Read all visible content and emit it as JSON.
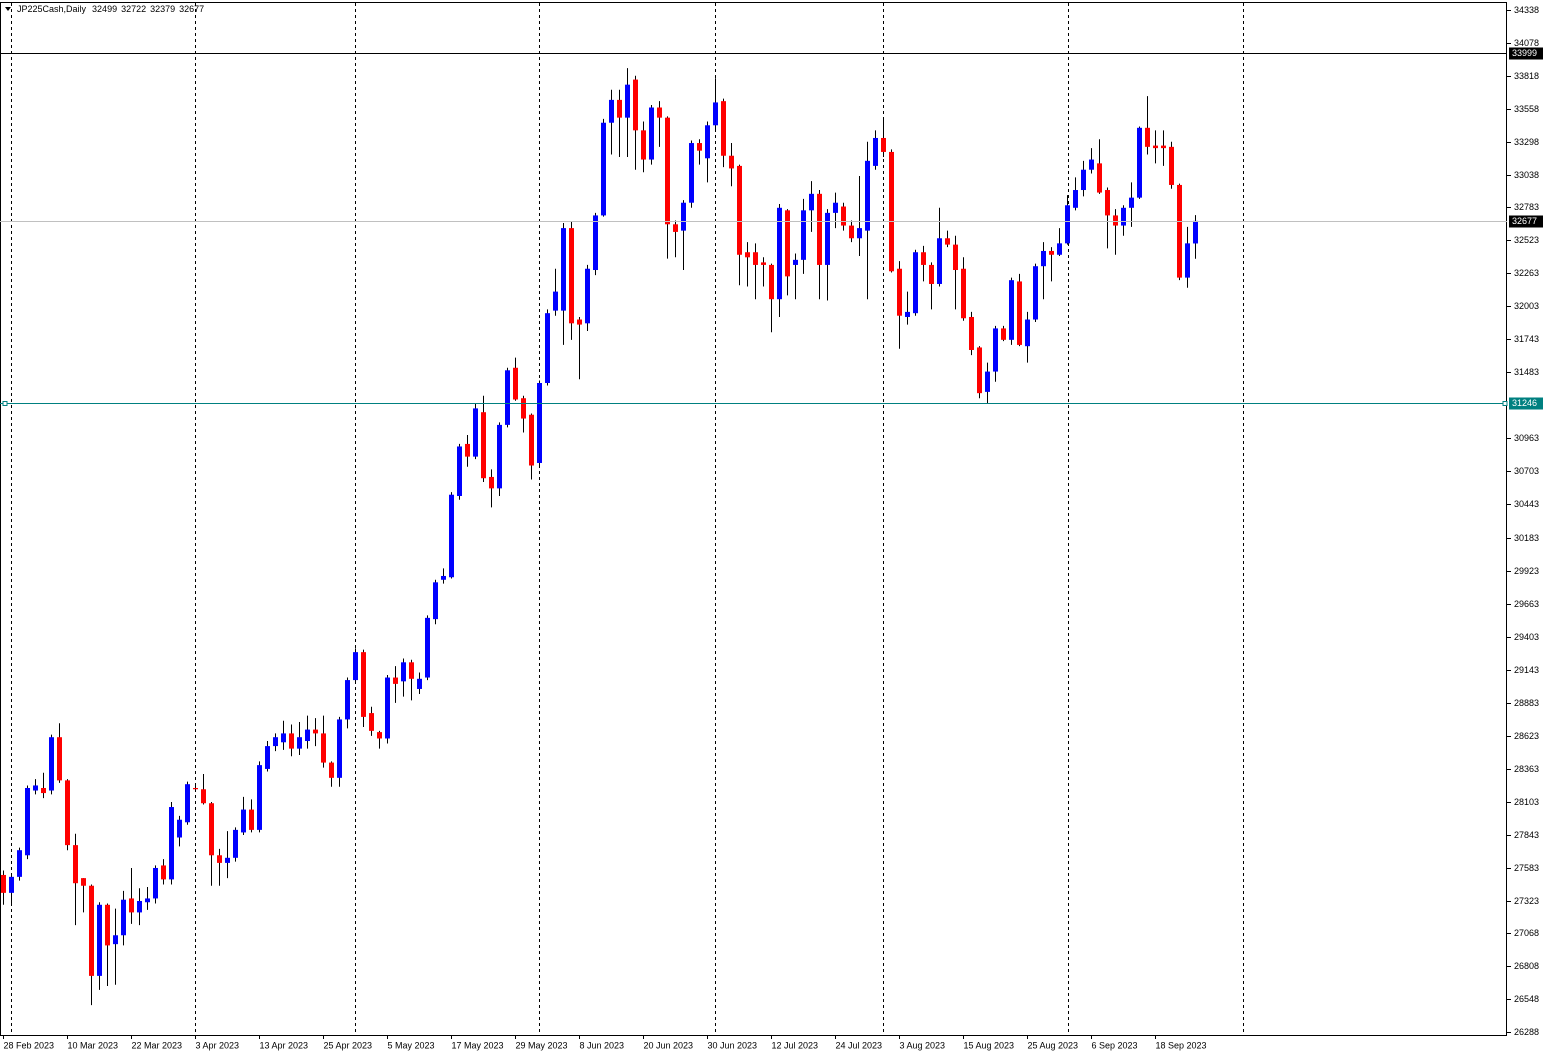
{
  "chart_data": {
    "type": "candlestick",
    "symbol": "JP225Cash,Daily",
    "up_color": "#0000ff",
    "down_color": "#ff0000",
    "bid_line_color": "#c0c0c0",
    "ylim": [
      26288,
      34338
    ],
    "yticks": [
      26288,
      26548,
      26808,
      27068,
      27323,
      27583,
      27843,
      28103,
      28363,
      28623,
      28883,
      29143,
      29403,
      29663,
      29923,
      30183,
      30443,
      30703,
      30963,
      31483,
      31743,
      32003,
      32263,
      32523,
      32783,
      33038,
      33298,
      33558,
      33818,
      34078,
      34338
    ],
    "hlines": [
      {
        "value": 33999,
        "color": "#000000"
      },
      {
        "value": 31246,
        "color": "#008080"
      }
    ],
    "categories": [
      "28 Feb 2023",
      null,
      null,
      null,
      null,
      null,
      null,
      null,
      "10 Mar 2023",
      null,
      null,
      null,
      null,
      null,
      null,
      null,
      "22 Mar 2023",
      null,
      null,
      null,
      null,
      null,
      null,
      null,
      "3 Apr 2023",
      null,
      null,
      null,
      null,
      null,
      null,
      null,
      "13 Apr 2023",
      null,
      null,
      null,
      null,
      null,
      null,
      null,
      "25 Apr 2023",
      null,
      null,
      null,
      null,
      null,
      null,
      null,
      "5 May 2023",
      null,
      null,
      null,
      null,
      null,
      null,
      null,
      "17 May 2023",
      null,
      null,
      null,
      null,
      null,
      null,
      null,
      "29 May 2023",
      null,
      null,
      null,
      null,
      null,
      null,
      null,
      "8 Jun 2023",
      null,
      null,
      null,
      null,
      null,
      null,
      null,
      "20 Jun 2023",
      null,
      null,
      null,
      null,
      null,
      null,
      null,
      "30 Jun 2023",
      null,
      null,
      null,
      null,
      null,
      null,
      null,
      "12 Jul 2023",
      null,
      null,
      null,
      null,
      null,
      null,
      null,
      "24 Jul 2023",
      null,
      null,
      null,
      null,
      null,
      null,
      null,
      "3 Aug 2023",
      null,
      null,
      null,
      null,
      null,
      null,
      null,
      "15 Aug 2023",
      null,
      null,
      null,
      null,
      null,
      null,
      null,
      "25 Aug 2023",
      null,
      null,
      null,
      null,
      null,
      null,
      null,
      "6 Sep 2023",
      null,
      null,
      null,
      null,
      null,
      null,
      null,
      "18 Sep 2023",
      null,
      null,
      null,
      null,
      null
    ],
    "ohlc": [
      [
        27525,
        27560,
        27290,
        27384
      ],
      [
        27384,
        27540,
        27290,
        27510
      ],
      [
        27510,
        27740,
        27480,
        27720
      ],
      [
        27680,
        28230,
        27650,
        28210
      ],
      [
        28190,
        28280,
        28160,
        28230
      ],
      [
        28210,
        28330,
        28130,
        28170
      ],
      [
        28190,
        28630,
        28160,
        28610
      ],
      [
        28610,
        28720,
        28250,
        28270
      ],
      [
        28270,
        28280,
        27720,
        27760
      ],
      [
        27760,
        27850,
        27130,
        27460
      ],
      [
        27500,
        27500,
        27230,
        27440
      ],
      [
        27440,
        27450,
        26500,
        26730
      ],
      [
        26730,
        27310,
        26620,
        27290
      ],
      [
        27290,
        27300,
        26650,
        26970
      ],
      [
        26980,
        27260,
        26660,
        27050
      ],
      [
        27050,
        27400,
        26970,
        27330
      ],
      [
        27340,
        27580,
        27140,
        27230
      ],
      [
        27230,
        27420,
        27130,
        27320
      ],
      [
        27310,
        27430,
        27250,
        27340
      ],
      [
        27340,
        27600,
        27300,
        27580
      ],
      [
        27600,
        27650,
        27450,
        27490
      ],
      [
        27490,
        28100,
        27450,
        28060
      ],
      [
        27820,
        27990,
        27750,
        27960
      ],
      [
        27940,
        28260,
        27920,
        28240
      ],
      [
        28210,
        28240,
        28190,
        28200
      ],
      [
        28200,
        28320,
        28080,
        28090
      ],
      [
        28090,
        28100,
        27440,
        27680
      ],
      [
        27680,
        27730,
        27440,
        27620
      ],
      [
        27620,
        27870,
        27500,
        27660
      ],
      [
        27660,
        27900,
        27630,
        27880
      ],
      [
        27860,
        28140,
        27840,
        28040
      ],
      [
        28040,
        28120,
        27860,
        27880
      ],
      [
        27880,
        28420,
        27860,
        28390
      ],
      [
        28360,
        28580,
        28340,
        28540
      ],
      [
        28540,
        28640,
        28500,
        28610
      ],
      [
        28570,
        28740,
        28510,
        28640
      ],
      [
        28640,
        28710,
        28460,
        28520
      ],
      [
        28520,
        28730,
        28470,
        28610
      ],
      [
        28580,
        28780,
        28520,
        28670
      ],
      [
        28670,
        28760,
        28540,
        28640
      ],
      [
        28640,
        28780,
        28370,
        28410
      ],
      [
        28410,
        28420,
        28220,
        28290
      ],
      [
        28290,
        28770,
        28220,
        28750
      ],
      [
        28750,
        29080,
        28680,
        29060
      ],
      [
        29060,
        29310,
        29040,
        29280
      ],
      [
        29280,
        29300,
        28690,
        28770
      ],
      [
        28800,
        28850,
        28620,
        28660
      ],
      [
        28650,
        28660,
        28520,
        28600
      ],
      [
        28600,
        29100,
        28560,
        29080
      ],
      [
        29080,
        29170,
        28880,
        29030
      ],
      [
        29050,
        29230,
        28930,
        29200
      ],
      [
        29200,
        29220,
        28900,
        29070
      ],
      [
        28990,
        29120,
        28950,
        29070
      ],
      [
        29080,
        29570,
        29060,
        29550
      ],
      [
        29540,
        29850,
        29500,
        29830
      ],
      [
        29850,
        29940,
        29820,
        29880
      ],
      [
        29870,
        30540,
        29860,
        30520
      ],
      [
        30510,
        30920,
        30480,
        30900
      ],
      [
        30920,
        30990,
        30740,
        30820
      ],
      [
        30820,
        31240,
        30800,
        31200
      ],
      [
        31170,
        31300,
        30620,
        30650
      ],
      [
        30660,
        30720,
        30420,
        30570
      ],
      [
        30570,
        31090,
        30510,
        31070
      ],
      [
        31070,
        31520,
        31050,
        31500
      ],
      [
        31520,
        31600,
        31260,
        31270
      ],
      [
        31280,
        31300,
        31010,
        31120
      ],
      [
        31150,
        31160,
        30640,
        30750
      ],
      [
        30770,
        31420,
        30750,
        31400
      ],
      [
        31400,
        31980,
        31380,
        31950
      ],
      [
        31970,
        32300,
        31930,
        32120
      ],
      [
        31970,
        32660,
        31700,
        32620
      ],
      [
        32620,
        32670,
        31740,
        31870
      ],
      [
        31900,
        31920,
        31430,
        31860
      ],
      [
        31870,
        32330,
        31810,
        32300
      ],
      [
        32290,
        32740,
        32250,
        32720
      ],
      [
        32720,
        33480,
        32710,
        33450
      ],
      [
        33450,
        33710,
        33200,
        33630
      ],
      [
        33630,
        33710,
        33180,
        33490
      ],
      [
        33490,
        33880,
        33180,
        33750
      ],
      [
        33790,
        33820,
        33080,
        33390
      ],
      [
        33390,
        33460,
        33060,
        33160
      ],
      [
        33160,
        33590,
        33120,
        33570
      ],
      [
        33570,
        33620,
        33260,
        33490
      ],
      [
        33490,
        33500,
        32380,
        32650
      ],
      [
        32650,
        32680,
        32390,
        32590
      ],
      [
        32600,
        32840,
        32290,
        32820
      ],
      [
        32820,
        33310,
        32780,
        33290
      ],
      [
        33290,
        33320,
        33120,
        33230
      ],
      [
        33170,
        33460,
        32980,
        33430
      ],
      [
        33430,
        33800,
        33400,
        33610
      ],
      [
        33620,
        33640,
        33100,
        33190
      ],
      [
        33190,
        33290,
        32950,
        33090
      ],
      [
        33110,
        33120,
        32170,
        32410
      ],
      [
        32430,
        32510,
        32160,
        32390
      ],
      [
        32430,
        32500,
        32060,
        32330
      ],
      [
        32350,
        32390,
        32160,
        32330
      ],
      [
        32330,
        32340,
        31800,
        32060
      ],
      [
        32060,
        32810,
        31920,
        32780
      ],
      [
        32760,
        32770,
        32090,
        32240
      ],
      [
        32330,
        32420,
        32060,
        32370
      ],
      [
        32370,
        32850,
        32260,
        32760
      ],
      [
        32760,
        32990,
        32590,
        32890
      ],
      [
        32890,
        32920,
        32060,
        32330
      ],
      [
        32330,
        32770,
        32050,
        32740
      ],
      [
        32740,
        32900,
        32620,
        32820
      ],
      [
        32790,
        32820,
        32600,
        32640
      ],
      [
        32640,
        32680,
        32510,
        32540
      ],
      [
        32540,
        33030,
        32400,
        32620
      ],
      [
        32600,
        33300,
        32060,
        33150
      ],
      [
        33110,
        33390,
        33080,
        33330
      ],
      [
        33330,
        33480,
        33180,
        33220
      ],
      [
        33220,
        33240,
        32270,
        32280
      ],
      [
        32300,
        32360,
        31670,
        31930
      ],
      [
        31920,
        32120,
        31860,
        31960
      ],
      [
        31950,
        32450,
        31930,
        32430
      ],
      [
        32430,
        32480,
        32200,
        32330
      ],
      [
        32330,
        32350,
        31980,
        32180
      ],
      [
        32180,
        32780,
        32160,
        32540
      ],
      [
        32540,
        32600,
        32470,
        32490
      ],
      [
        32490,
        32560,
        31980,
        32290
      ],
      [
        32300,
        32390,
        31890,
        31910
      ],
      [
        31920,
        31960,
        31620,
        31660
      ],
      [
        31680,
        31690,
        31280,
        31320
      ],
      [
        31330,
        31560,
        31240,
        31490
      ],
      [
        31490,
        31850,
        31410,
        31830
      ],
      [
        31830,
        31850,
        31730,
        31740
      ],
      [
        31740,
        32230,
        31700,
        32210
      ],
      [
        32200,
        32260,
        31690,
        31700
      ],
      [
        31690,
        31960,
        31560,
        31900
      ],
      [
        31900,
        32340,
        31880,
        32320
      ],
      [
        32320,
        32510,
        32060,
        32440
      ],
      [
        32440,
        32470,
        32200,
        32410
      ],
      [
        32410,
        32620,
        32400,
        32500
      ],
      [
        32500,
        32880,
        32490,
        32800
      ],
      [
        32780,
        33020,
        32760,
        32920
      ],
      [
        32920,
        33150,
        32870,
        33080
      ],
      [
        33080,
        33250,
        33050,
        33160
      ],
      [
        33130,
        33320,
        32890,
        32900
      ],
      [
        32920,
        32940,
        32460,
        32720
      ],
      [
        32720,
        32770,
        32410,
        32640
      ],
      [
        32640,
        32800,
        32560,
        32780
      ],
      [
        32780,
        32980,
        32630,
        32860
      ],
      [
        32860,
        33420,
        32850,
        33410
      ],
      [
        33410,
        33660,
        33200,
        33260
      ],
      [
        33270,
        33390,
        33130,
        33250
      ],
      [
        33270,
        33390,
        33110,
        33250
      ],
      [
        33260,
        33300,
        32930,
        32960
      ],
      [
        32960,
        32970,
        32210,
        32230
      ],
      [
        32230,
        32630,
        32150,
        32500
      ],
      [
        32499,
        32722,
        32379,
        32677
      ]
    ]
  }
}
